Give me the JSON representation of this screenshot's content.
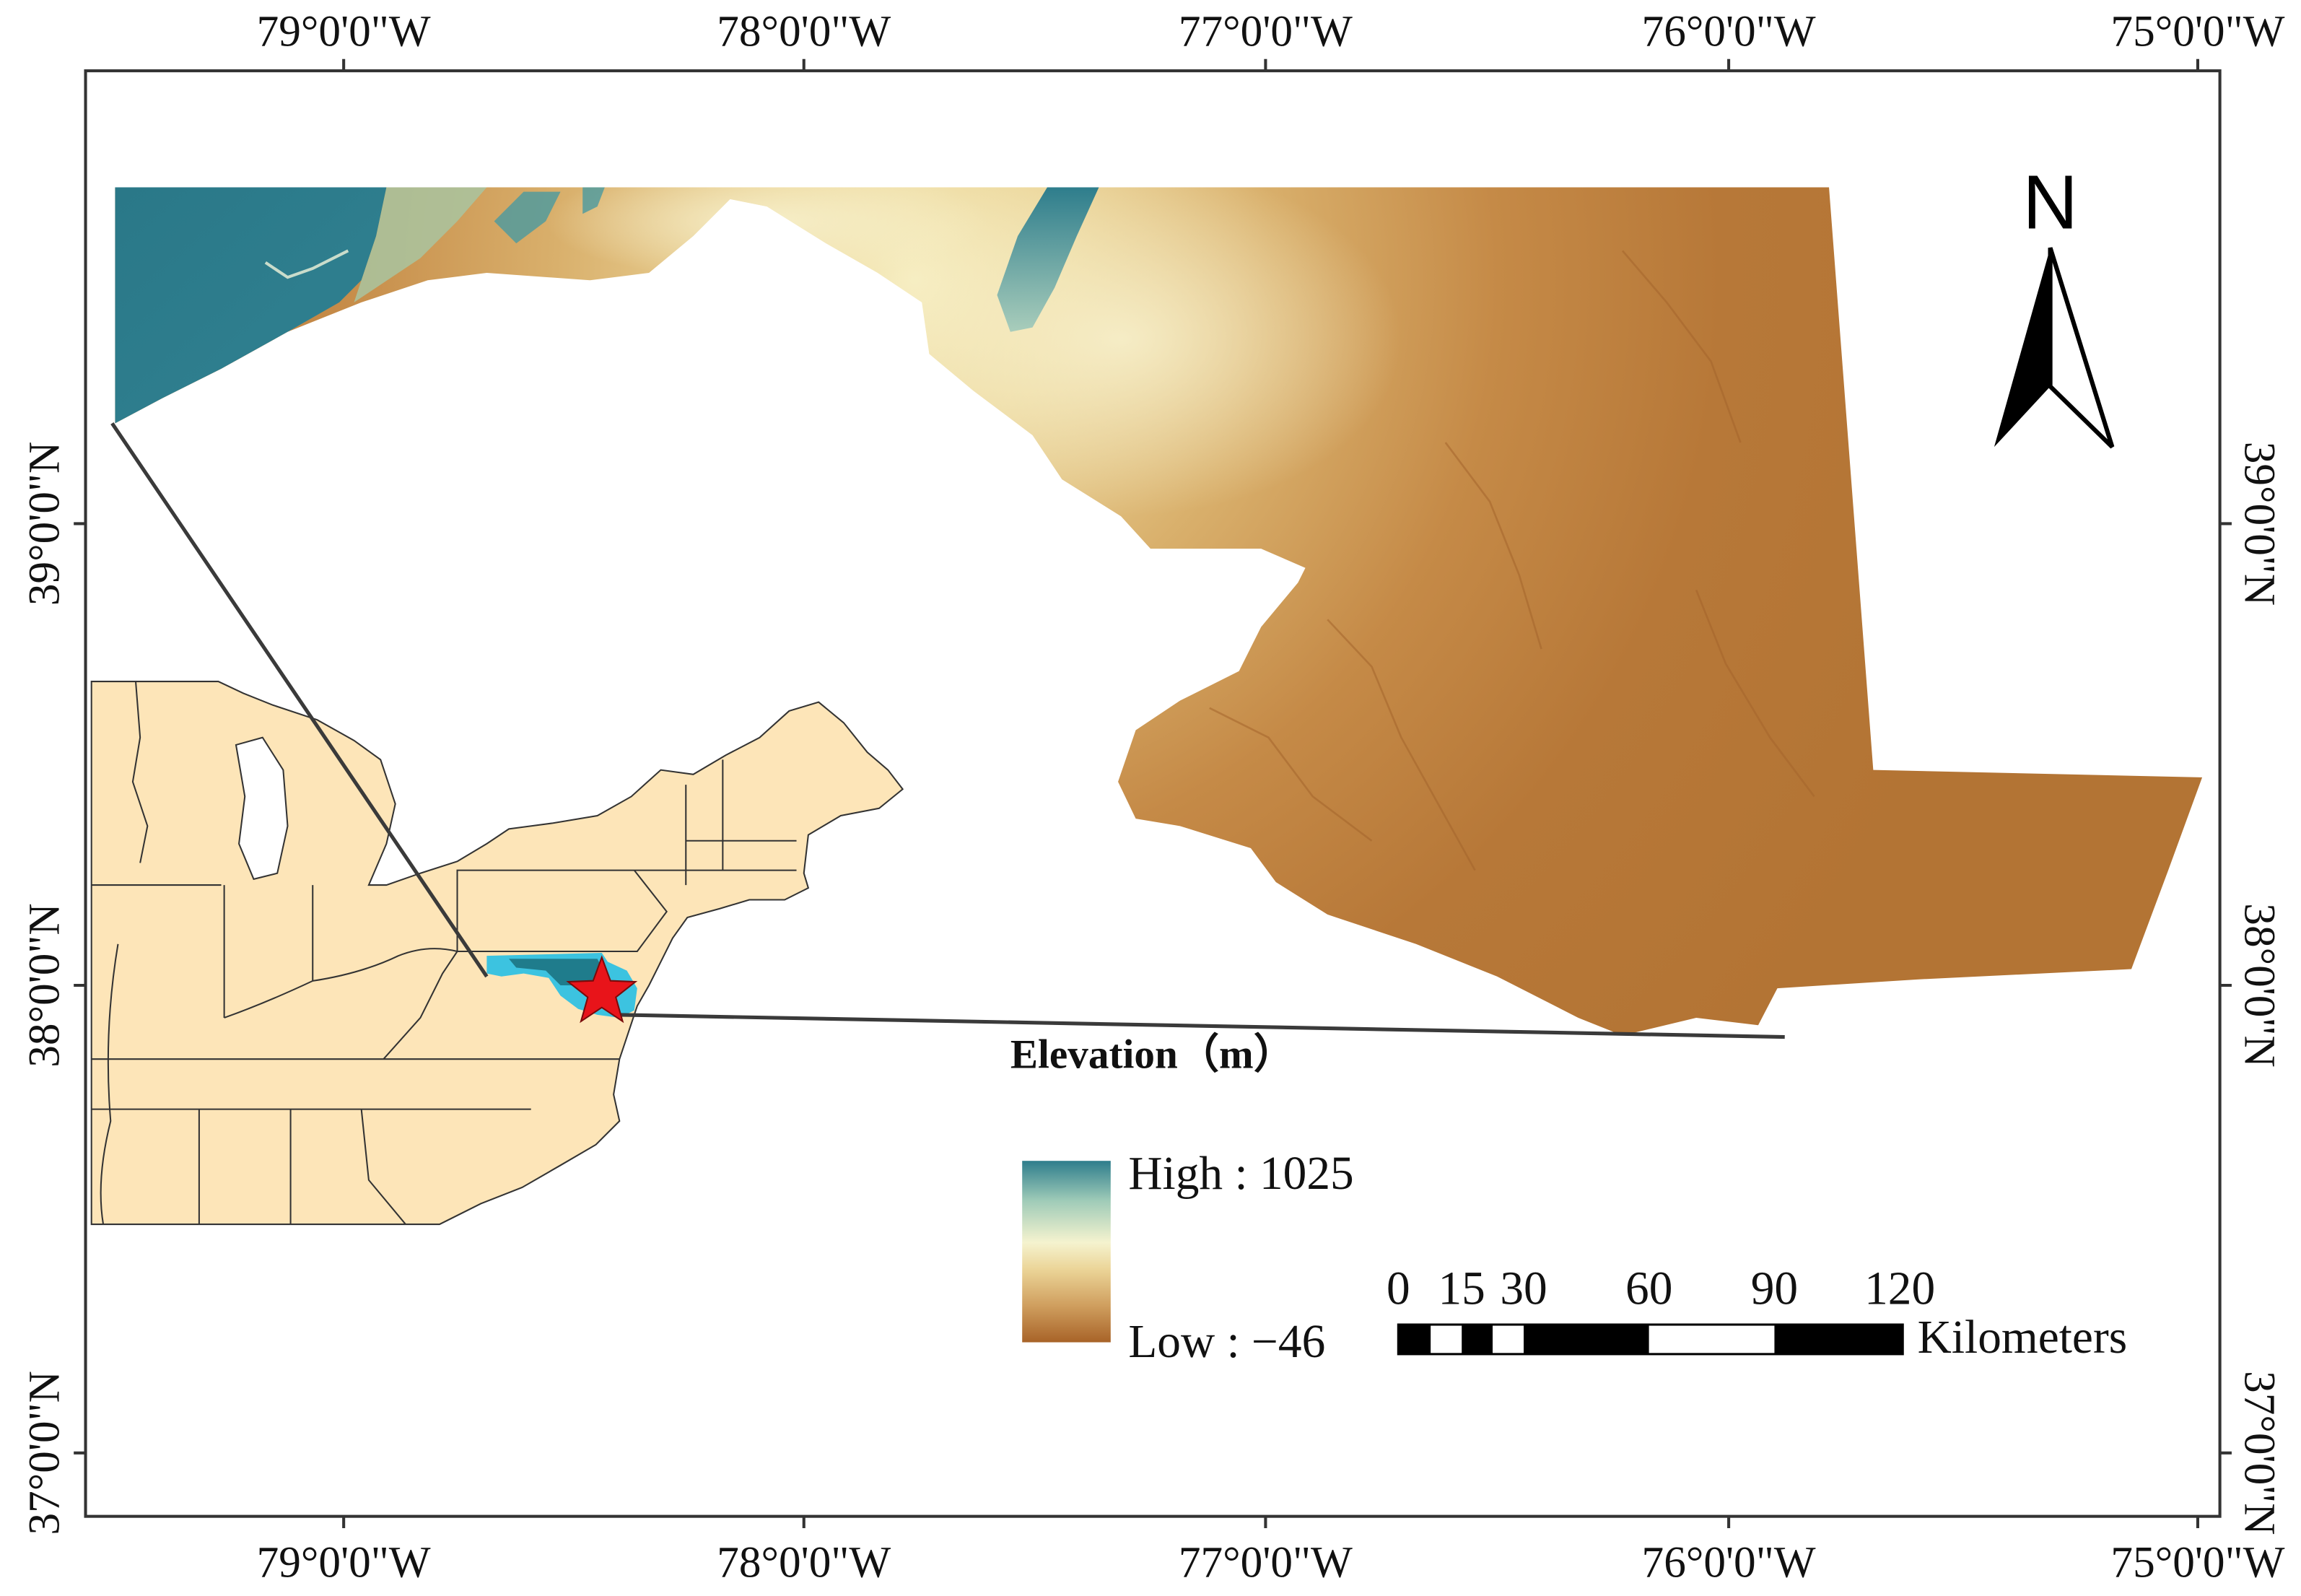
{
  "map": {
    "longitude_labels": [
      "79°0'0\"W",
      "78°0'0\"W",
      "77°0'0\"W",
      "76°0'0\"W",
      "75°0'0\"W"
    ],
    "latitude_labels": [
      "39°0'0\"N",
      "38°0'0\"N",
      "37°0'0\"N"
    ],
    "north_arrow_label": "N",
    "legend": {
      "title": "Elevation（m）",
      "high": "High : 1025",
      "low": "Low : −46",
      "ramp_colors": [
        "#2e7d8c",
        "#f4f1cc",
        "#a86328"
      ]
    },
    "scale_bar": {
      "ticks": [
        "0",
        "15",
        "30",
        "60",
        "90",
        "120"
      ],
      "unit": "Kilometers"
    },
    "inset": {
      "land_color": "#fde5b8",
      "highlight_color": "#3cc3e0",
      "marker": "red-star-icon",
      "marker_color": "#e8141a"
    }
  }
}
